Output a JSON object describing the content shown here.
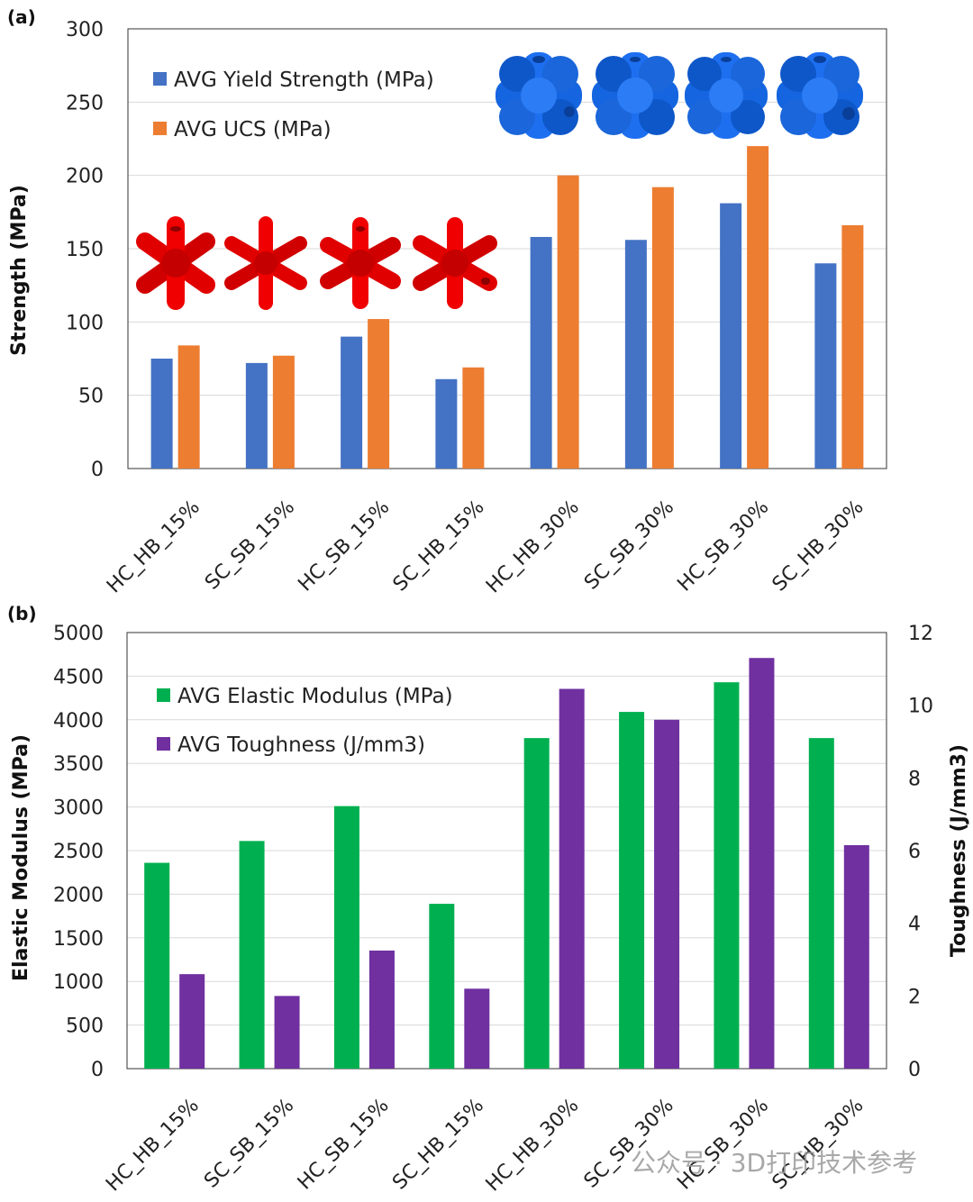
{
  "chart_data": [
    {
      "panel": "(a)",
      "type": "bar",
      "categories": [
        "HC_HB_15%",
        "SC_SB_15%",
        "HC_SB_15%",
        "SC_HB_15%",
        "HC_HB_30%",
        "SC_SB_30%",
        "HC_SB_30%",
        "SC_HB_30%"
      ],
      "series": [
        {
          "name": "AVG Yield Strength (MPa)",
          "color": "#4472C4",
          "values": [
            75,
            72,
            90,
            61,
            158,
            156,
            181,
            140
          ]
        },
        {
          "name": "AVG UCS (MPa)",
          "color": "#ED7D31",
          "values": [
            84,
            77,
            102,
            69,
            200,
            192,
            220,
            166
          ]
        }
      ],
      "ylabel": "Strength (MPa)",
      "ylim": [
        0,
        300
      ],
      "yticks": [
        "0",
        "50",
        "100",
        "150",
        "200",
        "250",
        "300"
      ],
      "grid": true,
      "legend": "top-left",
      "images": [
        "red-lattice-unit-cell",
        "blue-lattice-unit-cell"
      ]
    },
    {
      "panel": "(b)",
      "type": "bar",
      "categories": [
        "HC_HB_15%",
        "SC_SB_15%",
        "HC_SB_15%",
        "SC_HB_15%",
        "HC_HB_30%",
        "SC_SB_30%",
        "HC_SB_30%",
        "SC_HB_30%"
      ],
      "series": [
        {
          "name": "AVG Elastic Modulus (MPa)",
          "color": "#00B050",
          "axis": "left",
          "values": [
            2360,
            2610,
            3010,
            1890,
            3790,
            4090,
            4430,
            3790
          ]
        },
        {
          "name": "AVG Toughness (J/mm3)",
          "color": "#7030A0",
          "axis": "right",
          "values": [
            2.6,
            2.0,
            3.25,
            2.2,
            10.45,
            9.6,
            11.3,
            6.15
          ]
        }
      ],
      "ylabel": "Elastic Modulus (MPa)",
      "ylim": [
        0,
        5000
      ],
      "yticks": [
        "0",
        "500",
        "1000",
        "1500",
        "2000",
        "2500",
        "3000",
        "3500",
        "4000",
        "4500",
        "5000"
      ],
      "y2label": "Toughness (J/mm3)",
      "y2lim": [
        0,
        12
      ],
      "y2ticks": [
        "0",
        "2",
        "4",
        "6",
        "8",
        "10",
        "12"
      ],
      "grid": true,
      "legend": "top-left"
    }
  ],
  "watermark": "公众号 · 3D打印技术参考"
}
